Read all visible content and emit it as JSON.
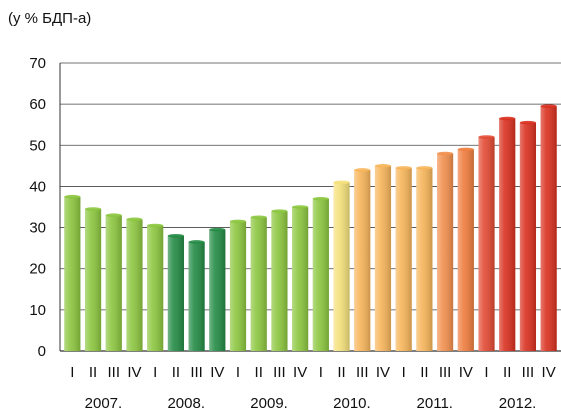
{
  "chart_data": {
    "type": "bar",
    "title": "",
    "ylabel": "(у % БДП-а)",
    "xlabel": "",
    "ylim": [
      0,
      70
    ],
    "yticks": [
      0,
      10,
      20,
      30,
      40,
      50,
      60,
      70
    ],
    "grid": true,
    "legend": "none",
    "categories": [
      "I",
      "II",
      "III",
      "IV",
      "I",
      "II",
      "III",
      "IV",
      "I",
      "II",
      "III",
      "IV",
      "I",
      "II",
      "III",
      "IV",
      "I",
      "II",
      "III",
      "IV",
      "I",
      "II",
      "III",
      "IV"
    ],
    "year_groups": [
      {
        "label": "2007.",
        "quarters": 4
      },
      {
        "label": "2008.",
        "quarters": 4
      },
      {
        "label": "2009.",
        "quarters": 4
      },
      {
        "label": "2010.",
        "quarters": 4
      },
      {
        "label": "2011.",
        "quarters": 4
      },
      {
        "label": "2012.",
        "quarters": 4
      }
    ],
    "values": [
      37.5,
      34.5,
      33,
      32,
      30.5,
      28,
      26.5,
      29.5,
      31.5,
      32.5,
      34,
      35,
      37,
      41,
      44,
      45,
      44.5,
      44.5,
      48,
      49,
      52,
      56.5,
      55.5,
      59.5
    ],
    "colors": [
      "#8cc63f",
      "#8cc63f",
      "#8cc63f",
      "#8cc63f",
      "#8cc63f",
      "#238b45",
      "#238b45",
      "#238b45",
      "#8cc63f",
      "#8cc63f",
      "#8cc63f",
      "#8cc63f",
      "#8cc63f",
      "#f4e07a",
      "#f7b55a",
      "#f7b55a",
      "#f7b55a",
      "#f7b55a",
      "#f2904e",
      "#ef7d3e",
      "#e24a33",
      "#d9301f",
      "#d9301f",
      "#d9301f"
    ]
  }
}
